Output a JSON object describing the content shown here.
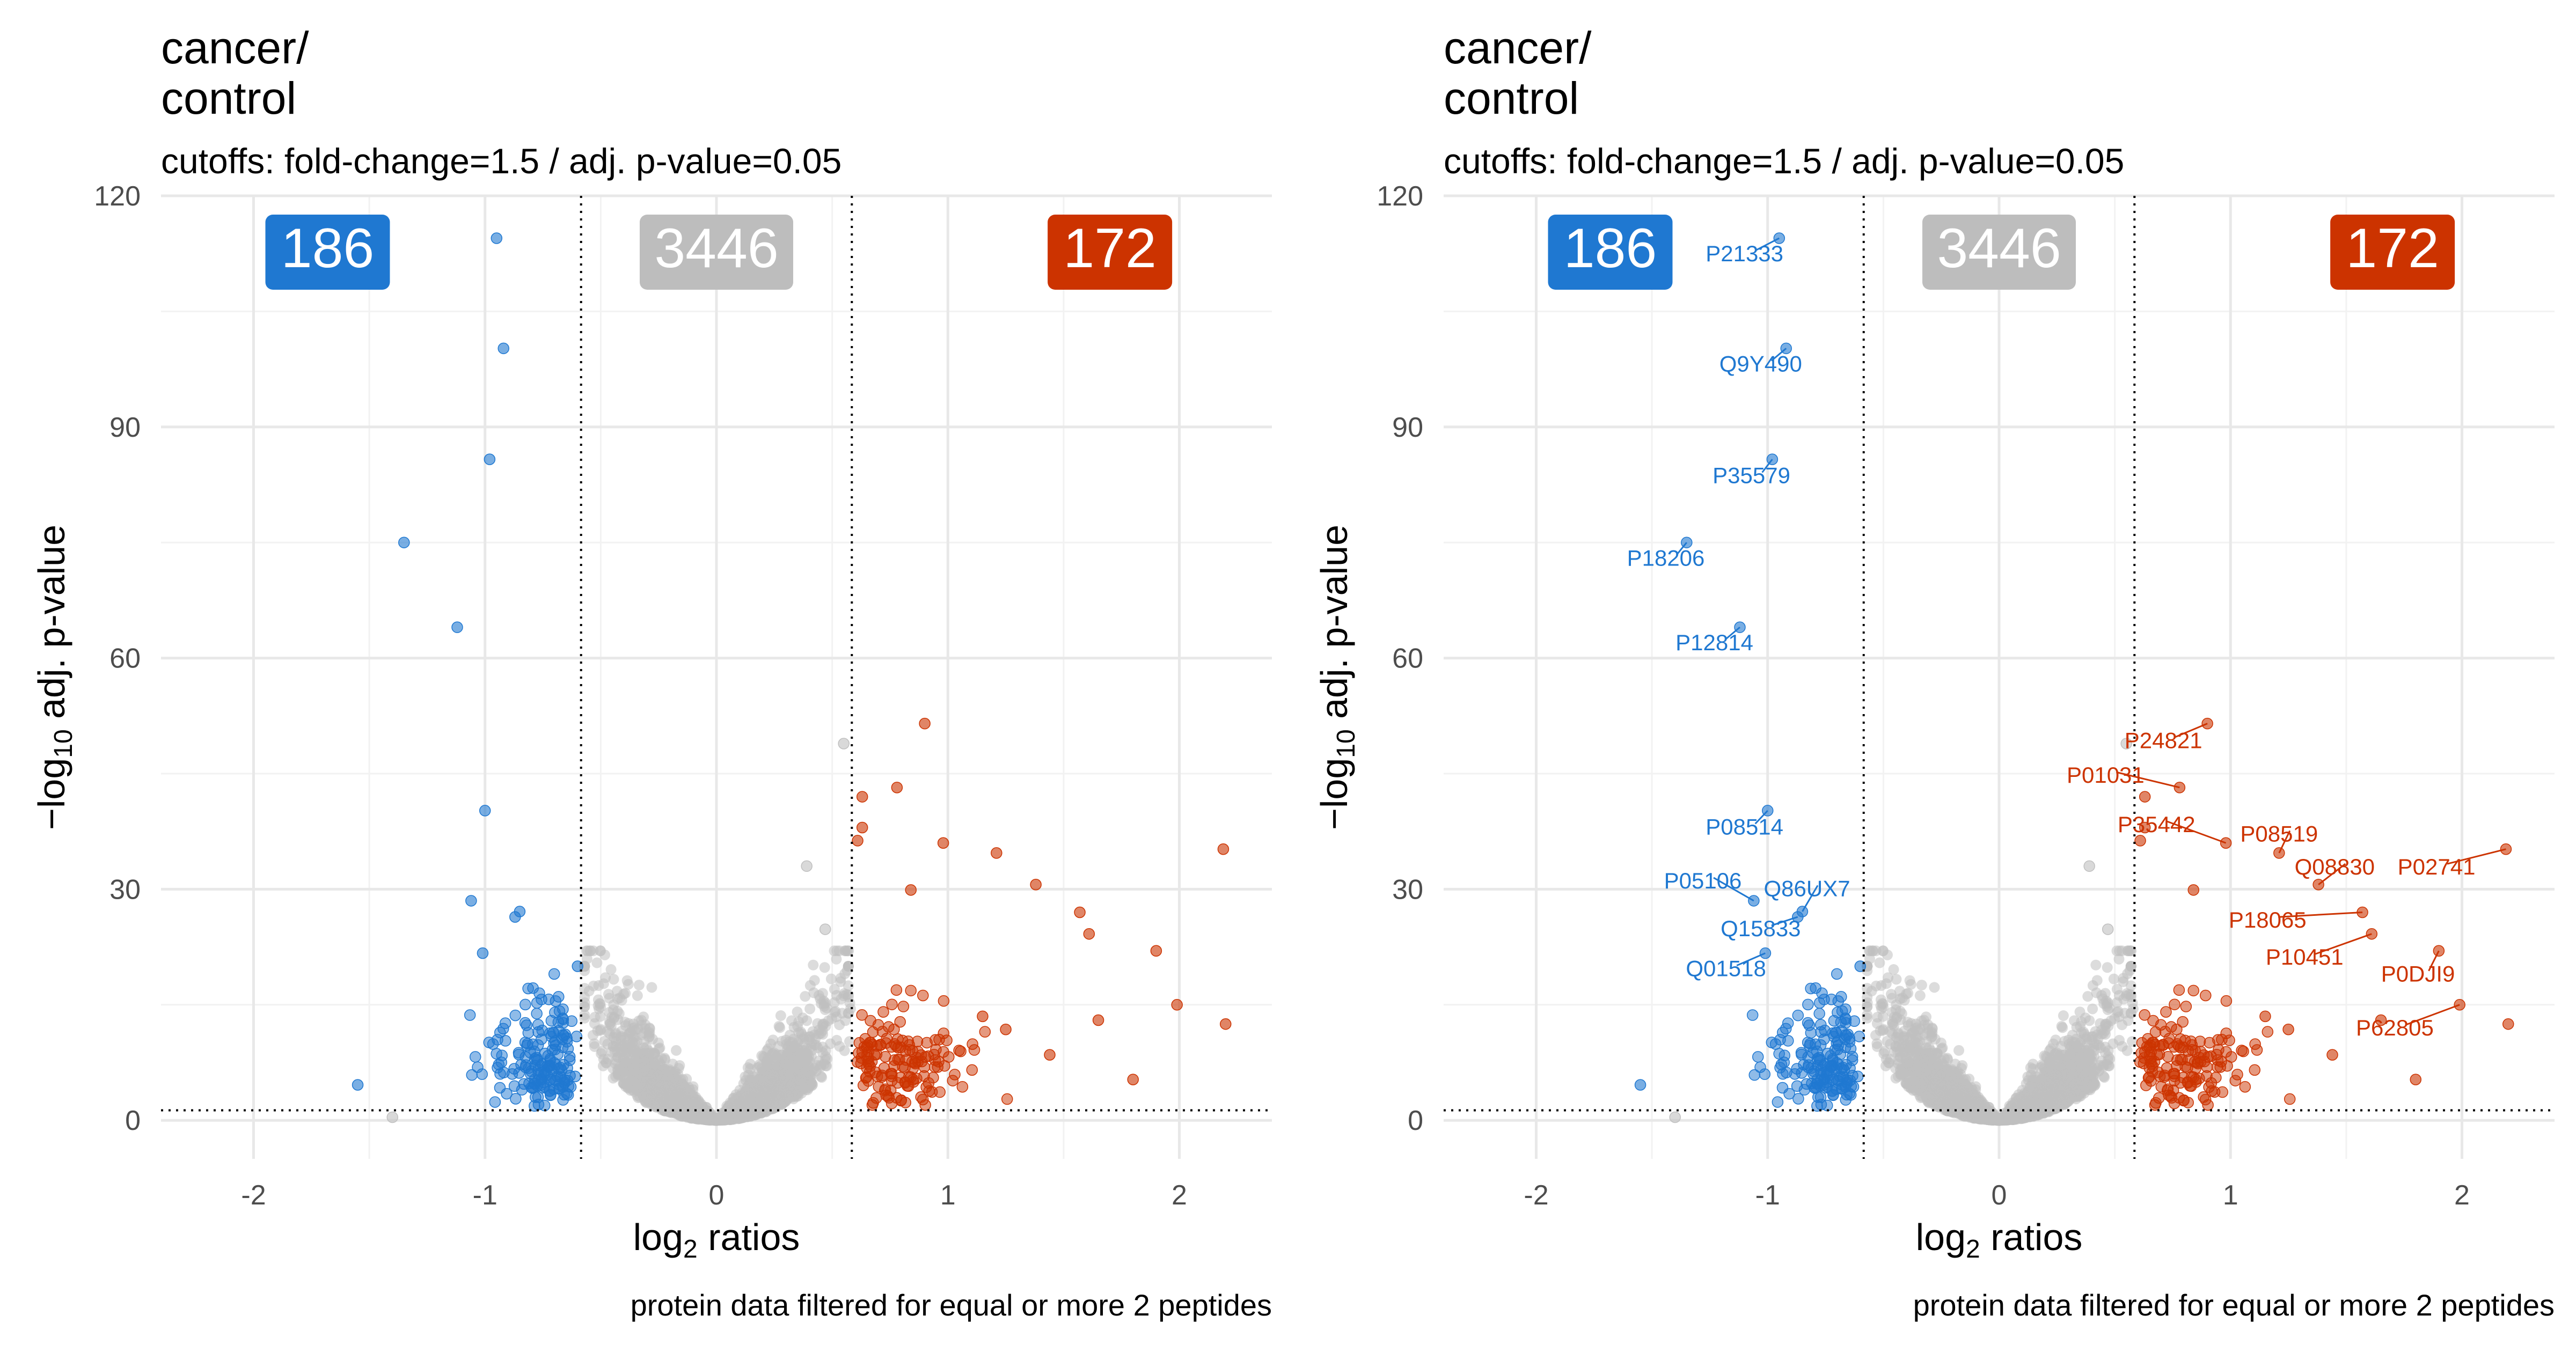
{
  "panels": [
    {
      "title": "cancer/\ncontrol",
      "subtitle": "cutoffs: fold-change=1.5 / adj. p-value=0.05",
      "caption": "protein data filtered for equal or more 2 peptides",
      "labelled": false
    },
    {
      "title": "cancer/\ncontrol",
      "subtitle": "cutoffs: fold-change=1.5 / adj. p-value=0.05",
      "caption": "protein data filtered for equal or more 2 peptides",
      "labelled": true
    }
  ],
  "chart_data": {
    "type": "scatter",
    "xlabel": "log2 ratios",
    "ylabel": "−log10 adj. p-value",
    "xlim": [
      -2.4,
      2.4
    ],
    "ylim": [
      -5,
      120
    ],
    "x_ticks": [
      -2,
      -1,
      0,
      1,
      2
    ],
    "x_tick_labels": [
      "-2",
      "-1",
      "0",
      "1",
      "2"
    ],
    "y_ticks": [
      0,
      30,
      60,
      90,
      120
    ],
    "y_tick_labels": [
      "0",
      "30",
      "60",
      "90",
      "120"
    ],
    "cutoff_lines": {
      "x": [
        -0.585,
        0.585
      ],
      "y": 1.3
    },
    "grid": true,
    "colors": {
      "down": "#1f78d1",
      "up": "#cc3300",
      "ns": "#c0c0c0"
    },
    "counts": [
      {
        "label": "186",
        "x": -1.68,
        "color": "#1f78d1"
      },
      {
        "label": "3446",
        "x": 0.0,
        "color": "#bdbdbd"
      },
      {
        "label": "172",
        "x": 1.7,
        "color": "#cc3300"
      }
    ],
    "series": [
      {
        "name": "down",
        "n": 186
      },
      {
        "name": "ns",
        "n": 3446
      },
      {
        "name": "up",
        "n": 172
      }
    ],
    "highlight_points": [
      {
        "x": -0.95,
        "y": 114.5,
        "group": "down"
      },
      {
        "x": -0.92,
        "y": 100.2,
        "group": "down"
      },
      {
        "x": -0.98,
        "y": 85.8,
        "group": "down"
      },
      {
        "x": -1.35,
        "y": 75.0,
        "group": "down"
      },
      {
        "x": -1.12,
        "y": 64.0,
        "group": "down"
      },
      {
        "x": -1.0,
        "y": 40.2,
        "group": "down"
      },
      {
        "x": -1.06,
        "y": 28.5,
        "group": "down"
      },
      {
        "x": -0.85,
        "y": 27.1,
        "group": "down"
      },
      {
        "x": -0.87,
        "y": 26.4,
        "group": "down"
      },
      {
        "x": -1.01,
        "y": 21.7,
        "group": "down"
      },
      {
        "x": -0.6,
        "y": 20.0,
        "group": "down"
      },
      {
        "x": -1.55,
        "y": 4.6,
        "group": "down"
      },
      {
        "x": -1.4,
        "y": 0.4,
        "group": "ns"
      },
      {
        "x": 0.9,
        "y": 51.5,
        "group": "up"
      },
      {
        "x": 0.55,
        "y": 48.9,
        "group": "ns"
      },
      {
        "x": 0.78,
        "y": 43.2,
        "group": "up"
      },
      {
        "x": 0.63,
        "y": 42.0,
        "group": "up"
      },
      {
        "x": 0.63,
        "y": 38.0,
        "group": "up"
      },
      {
        "x": 0.61,
        "y": 36.3,
        "group": "up"
      },
      {
        "x": 0.98,
        "y": 36.0,
        "group": "up"
      },
      {
        "x": 1.21,
        "y": 34.7,
        "group": "up"
      },
      {
        "x": 0.39,
        "y": 33.0,
        "group": "ns"
      },
      {
        "x": 1.38,
        "y": 30.6,
        "group": "up"
      },
      {
        "x": 0.84,
        "y": 29.9,
        "group": "up"
      },
      {
        "x": 1.57,
        "y": 27.0,
        "group": "up"
      },
      {
        "x": 1.61,
        "y": 24.2,
        "group": "up"
      },
      {
        "x": 2.19,
        "y": 35.2,
        "group": "up"
      },
      {
        "x": 1.9,
        "y": 22.0,
        "group": "up"
      },
      {
        "x": 1.99,
        "y": 15.0,
        "group": "up"
      },
      {
        "x": 2.2,
        "y": 12.5,
        "group": "up"
      },
      {
        "x": 1.8,
        "y": 5.3,
        "group": "up"
      },
      {
        "x": 1.65,
        "y": 13.0,
        "group": "up"
      },
      {
        "x": 1.44,
        "y": 8.5,
        "group": "up"
      },
      {
        "x": 1.15,
        "y": 13.5,
        "group": "up"
      },
      {
        "x": 1.25,
        "y": 11.8,
        "group": "up"
      },
      {
        "x": 0.47,
        "y": 24.8,
        "group": "ns"
      }
    ],
    "labels": [
      {
        "text": "P21333",
        "x": -0.95,
        "y": 114.5,
        "group": "down",
        "lx": -1.1,
        "ly": 111.5
      },
      {
        "text": "Q9Y490",
        "x": -0.92,
        "y": 100.2,
        "group": "down",
        "lx": -1.03,
        "ly": 97.2
      },
      {
        "text": "P35579",
        "x": -0.98,
        "y": 85.8,
        "group": "down",
        "lx": -1.07,
        "ly": 82.7
      },
      {
        "text": "P18206",
        "x": -1.35,
        "y": 75.0,
        "group": "down",
        "lx": -1.44,
        "ly": 72.0
      },
      {
        "text": "P12814",
        "x": -1.12,
        "y": 64.0,
        "group": "down",
        "lx": -1.23,
        "ly": 61.0
      },
      {
        "text": "P08514",
        "x": -1.0,
        "y": 40.2,
        "group": "down",
        "lx": -1.1,
        "ly": 37.1
      },
      {
        "text": "P05106",
        "x": -1.06,
        "y": 28.5,
        "group": "down",
        "lx": -1.28,
        "ly": 30.1
      },
      {
        "text": "Q86UX7",
        "x": -0.85,
        "y": 27.1,
        "group": "down",
        "lx": -0.83,
        "ly": 29.1
      },
      {
        "text": "Q15833",
        "x": -0.87,
        "y": 26.4,
        "group": "down",
        "lx": -1.03,
        "ly": 23.9
      },
      {
        "text": "Q01518",
        "x": -1.01,
        "y": 21.7,
        "group": "down",
        "lx": -1.18,
        "ly": 18.7
      },
      {
        "text": "P24821",
        "x": 0.9,
        "y": 51.5,
        "group": "up",
        "lx": 0.71,
        "ly": 48.3
      },
      {
        "text": "P01031",
        "x": 0.78,
        "y": 43.2,
        "group": "up",
        "lx": 0.46,
        "ly": 43.8
      },
      {
        "text": "P35442",
        "x": 0.98,
        "y": 36.0,
        "group": "up",
        "lx": 0.68,
        "ly": 37.4
      },
      {
        "text": "P08519",
        "x": 1.21,
        "y": 34.7,
        "group": "up",
        "lx": 1.21,
        "ly": 36.2
      },
      {
        "text": "Q08830",
        "x": 1.38,
        "y": 30.6,
        "group": "up",
        "lx": 1.45,
        "ly": 31.9
      },
      {
        "text": "P02741",
        "x": 2.19,
        "y": 35.2,
        "group": "up",
        "lx": 1.89,
        "ly": 31.9
      },
      {
        "text": "P18065",
        "x": 1.57,
        "y": 27.0,
        "group": "up",
        "lx": 1.16,
        "ly": 25.0
      },
      {
        "text": "P10451",
        "x": 1.61,
        "y": 24.2,
        "group": "up",
        "lx": 1.32,
        "ly": 20.2
      },
      {
        "text": "P0DJI9",
        "x": 1.9,
        "y": 22.0,
        "group": "up",
        "lx": 1.81,
        "ly": 18.0
      },
      {
        "text": "P62805",
        "x": 1.99,
        "y": 15.0,
        "group": "up",
        "lx": 1.71,
        "ly": 11.0
      }
    ]
  }
}
